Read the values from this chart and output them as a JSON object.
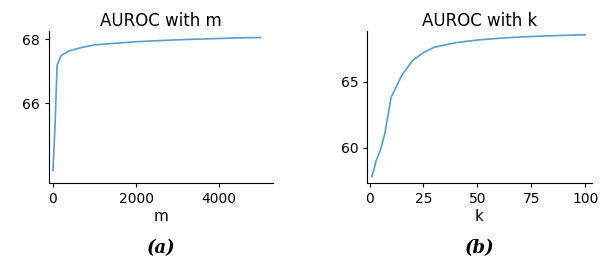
{
  "left_title": "AUROC with m",
  "right_title": "AUROC with k",
  "left_xlabel": "m",
  "right_xlabel": "k",
  "left_caption": "(a)",
  "right_caption": "(b)",
  "left_x": [
    0,
    50,
    100,
    200,
    400,
    700,
    1000,
    1500,
    2000,
    2500,
    3000,
    3500,
    4000,
    4500,
    5000
  ],
  "left_y": [
    63.9,
    65.3,
    67.2,
    67.5,
    67.65,
    67.75,
    67.83,
    67.88,
    67.93,
    67.96,
    67.99,
    68.01,
    68.03,
    68.05,
    68.06
  ],
  "right_x": [
    1,
    2,
    3,
    5,
    7,
    10,
    15,
    20,
    25,
    30,
    40,
    50,
    60,
    70,
    80,
    90,
    100
  ],
  "right_y": [
    57.8,
    58.3,
    59.0,
    59.8,
    61.0,
    63.8,
    65.5,
    66.6,
    67.2,
    67.6,
    67.95,
    68.15,
    68.28,
    68.38,
    68.45,
    68.5,
    68.55
  ],
  "line_color": "#5b9bd5",
  "left_xlim": [
    -100,
    5300
  ],
  "left_ylim": [
    63.5,
    68.25
  ],
  "left_yticks": [
    66,
    68
  ],
  "left_xticks": [
    0,
    2000,
    4000
  ],
  "right_xlim": [
    -1,
    103
  ],
  "right_ylim": [
    57.3,
    68.8
  ],
  "right_yticks": [
    60,
    65
  ],
  "right_xticks": [
    0,
    25,
    50,
    75,
    100
  ],
  "caption_fontsize": 13,
  "title_fontsize": 12,
  "label_fontsize": 11,
  "tick_fontsize": 10
}
